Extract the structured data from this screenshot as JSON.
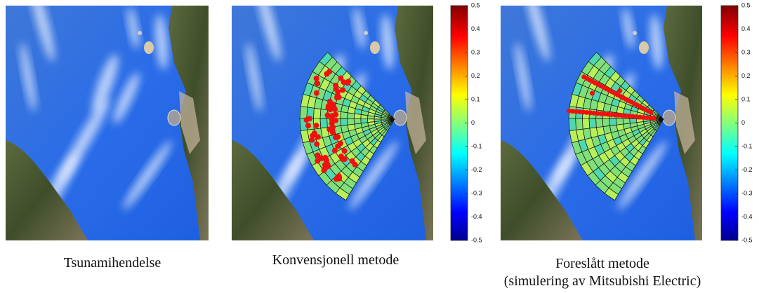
{
  "panels": [
    {
      "caption": [
        "Tsunamihendelse"
      ]
    },
    {
      "caption": [
        "Konvensjonell metode"
      ]
    },
    {
      "caption": [
        "Foreslått metode",
        "(simulering av Mitsubishi Electric)"
      ]
    }
  ],
  "colorbars": [
    {
      "lim": [
        -0.5,
        0.5
      ],
      "ticks": [
        0.5,
        0.4,
        0.3,
        0.2,
        0.1,
        0,
        -0.1,
        -0.2,
        -0.3,
        -0.4,
        -0.5
      ]
    },
    {
      "lim": [
        -0.5,
        0.5
      ],
      "ticks": [
        0.5,
        0.4,
        0.3,
        0.2,
        0.1,
        0,
        -0.1,
        -0.2,
        -0.3,
        -0.4,
        -0.5
      ]
    }
  ]
}
